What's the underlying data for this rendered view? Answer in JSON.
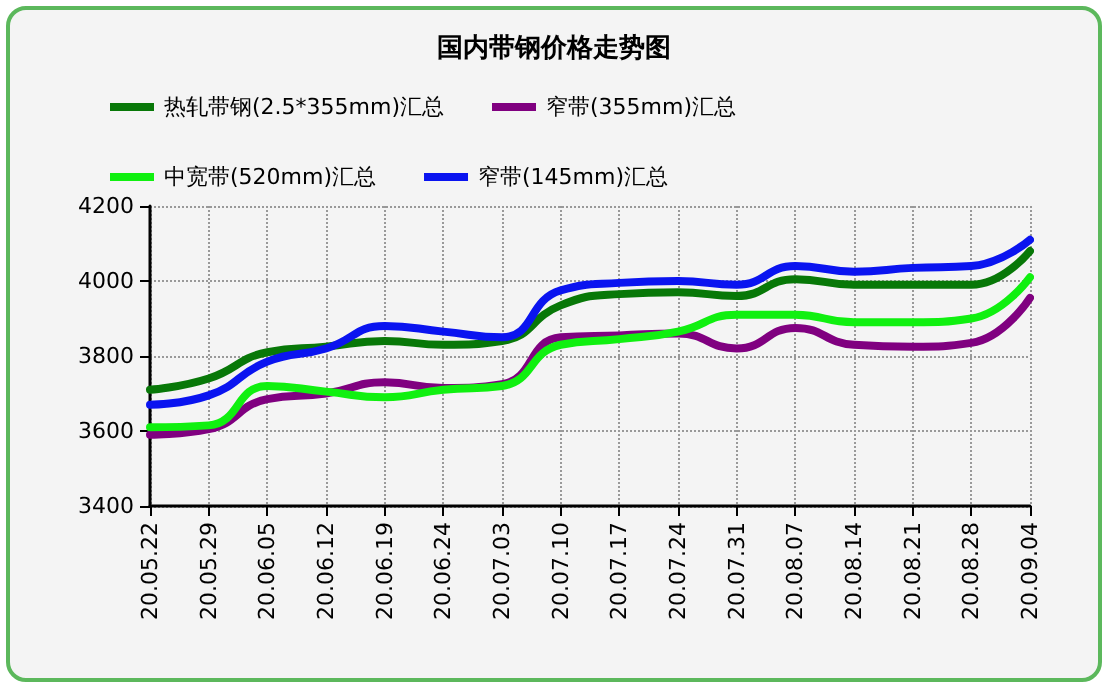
{
  "chart_data": {
    "type": "line",
    "title": "国内带钢价格走势图",
    "categories": [
      "20.05.22",
      "20.05.29",
      "20.06.05",
      "20.06.12",
      "20.06.19",
      "20.06.24",
      "20.07.03",
      "20.07.10",
      "20.07.17",
      "20.07.24",
      "20.07.31",
      "20.08.07",
      "20.08.14",
      "20.08.21",
      "20.08.28",
      "20.09.04"
    ],
    "series": [
      {
        "name": "热轧带钢(2.5*355mm)汇总",
        "color": "#087808",
        "values": [
          3710,
          3740,
          3810,
          3825,
          3840,
          3830,
          3840,
          3935,
          3965,
          3970,
          3960,
          4005,
          3990,
          3990,
          3990,
          4080
        ]
      },
      {
        "name": "窄带(355mm)汇总",
        "color": "#800080",
        "values": [
          3590,
          3605,
          3685,
          3700,
          3730,
          3715,
          3725,
          3850,
          3855,
          3860,
          3820,
          3875,
          3830,
          3825,
          3835,
          3955
        ]
      },
      {
        "name": "中宽带(520mm)汇总",
        "color": "#10f010",
        "values": [
          3610,
          3615,
          3720,
          3705,
          3690,
          3710,
          3720,
          3830,
          3845,
          3865,
          3910,
          3910,
          3890,
          3890,
          3900,
          4010
        ]
      },
      {
        "name": "窄带(145mm)汇总",
        "color": "#0a14f0",
        "values": [
          3670,
          3695,
          3785,
          3820,
          3880,
          3865,
          3850,
          3975,
          3995,
          4000,
          3990,
          4040,
          4025,
          4035,
          4040,
          4110
        ]
      }
    ],
    "ylim": [
      3400,
      4200
    ],
    "yticks": [
      3400,
      3600,
      3800,
      4000,
      4200
    ],
    "grid": true,
    "legend": "top",
    "marker": "none",
    "line_style": "solid"
  }
}
